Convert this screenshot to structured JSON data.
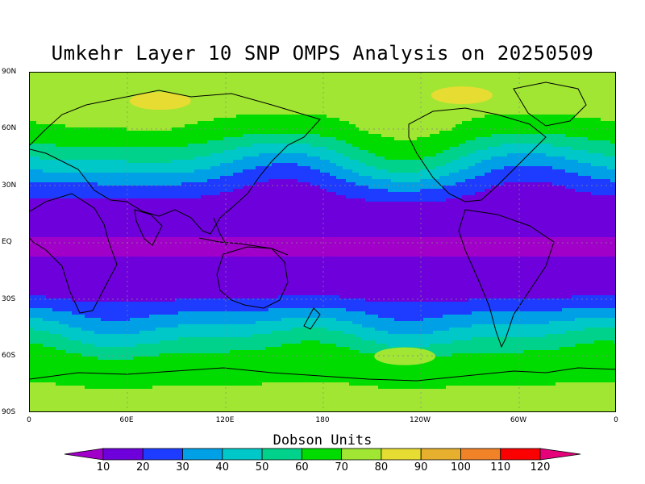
{
  "title": "Umkehr Layer 10 SNP OMPS Analysis on 20250509",
  "y_ticks": [
    "90N",
    "60N",
    "30N",
    "EQ",
    "30S",
    "60S",
    "90S"
  ],
  "x_ticks": [
    "0",
    "60E",
    "120E",
    "180",
    "120W",
    "60W",
    "0"
  ],
  "colorbar": {
    "title": "Dobson Units",
    "labels": [
      "10",
      "20",
      "30",
      "40",
      "50",
      "60",
      "70",
      "80",
      "90",
      "100",
      "110",
      "120"
    ],
    "colors": [
      "#a000c8",
      "#6e00dc",
      "#1e3cff",
      "#00a0e6",
      "#00c8c8",
      "#00d28c",
      "#00dc00",
      "#a0e632",
      "#e6dc32",
      "#e6af2d",
      "#f08228",
      "#fa0000",
      "#e6007a"
    ]
  },
  "chart_data": {
    "type": "heatmap",
    "title": "Umkehr Layer 10 SNP OMPS Analysis on 20250509",
    "units": "Dobson Units",
    "x_ticks": [
      "0",
      "60E",
      "120E",
      "180",
      "120W",
      "60W",
      "0"
    ],
    "y_ticks": [
      "90N",
      "60N",
      "30N",
      "EQ",
      "30S",
      "60S",
      "90S"
    ],
    "levels": [
      10,
      20,
      30,
      40,
      50,
      60,
      70,
      80,
      90,
      100,
      110,
      120
    ],
    "zonal_profile": [
      {
        "lat": 90,
        "value": 75
      },
      {
        "lat": 75,
        "value": 74
      },
      {
        "lat": 60,
        "value": 68
      },
      {
        "lat": 50,
        "value": 55
      },
      {
        "lat": 40,
        "value": 40
      },
      {
        "lat": 30,
        "value": 25
      },
      {
        "lat": 20,
        "value": 15
      },
      {
        "lat": 0,
        "value": 9
      },
      {
        "lat": -20,
        "value": 12
      },
      {
        "lat": -30,
        "value": 20
      },
      {
        "lat": -40,
        "value": 35
      },
      {
        "lat": -50,
        "value": 50
      },
      {
        "lat": -60,
        "value": 63
      },
      {
        "lat": -75,
        "value": 70
      },
      {
        "lat": -90,
        "value": 72
      }
    ],
    "features": [
      {
        "name": "yellow patch",
        "lon": 80,
        "lat": 75,
        "range": "80-90"
      },
      {
        "name": "yellow patch",
        "lon": -95,
        "lat": 78,
        "range": "80-90"
      },
      {
        "name": "light green patch",
        "lon": -130,
        "lat": -60,
        "range": "70-80"
      }
    ]
  }
}
